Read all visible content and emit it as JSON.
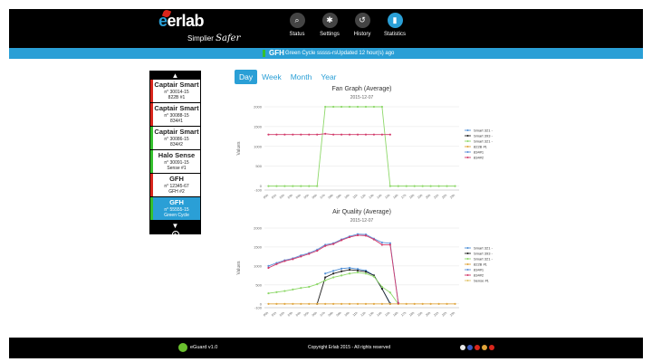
{
  "header": {
    "brand": {
      "logo_text": "erlab",
      "tagline_a": "Simplier",
      "tagline_b": "Safer"
    },
    "nav": [
      {
        "label": "Status",
        "icon": "search-icon",
        "glyph": "⌕"
      },
      {
        "label": "Settings",
        "icon": "gear-icon",
        "glyph": "✱"
      },
      {
        "label": "History",
        "icon": "history-icon",
        "glyph": "↺"
      },
      {
        "label": "Statistics",
        "icon": "chart-icon",
        "glyph": "▮"
      }
    ],
    "active_nav": "Statistics"
  },
  "subbar": {
    "device": "GFH",
    "cycle": "Green Cycle sssss-rs",
    "updated": "Updated 12 hour(s) ago",
    "accent": "#35c02d"
  },
  "devices": [
    {
      "name": "Captair Smart",
      "serial": "n° 30014-15",
      "group": "822B #1",
      "bar": "#d9261c"
    },
    {
      "name": "Captair Smart",
      "serial": "n° 30088-15",
      "group": "834#1",
      "bar": "#d9261c"
    },
    {
      "name": "Captair Smart",
      "serial": "n° 30086-15",
      "group": "834#2",
      "bar": "#35c02d"
    },
    {
      "name": "Halo Sense",
      "serial": "n° 30091-15",
      "group": "Sense #1",
      "bar": "#35c02d"
    },
    {
      "name": "GFH",
      "serial": "n° 12345-67",
      "group": "GFH #2",
      "bar": "#d9261c"
    },
    {
      "name": "GFH",
      "serial": "n° 55555-15",
      "group": "Green Cycle",
      "bar": "#35c02d",
      "selected": true
    }
  ],
  "tabs": [
    "Day",
    "Week",
    "Month",
    "Year"
  ],
  "active_tab": "Day",
  "chart_data": [
    {
      "type": "line",
      "title": "Fan Graph (Average)",
      "subtitle": "2015-12-07",
      "ylabel": "Values",
      "ylim": [
        -100,
        2000
      ],
      "yticks": [
        -100,
        0,
        500,
        1000,
        1500,
        2000
      ],
      "x": [
        "00h",
        "01h",
        "02h",
        "03h",
        "04h",
        "05h",
        "06h",
        "07h",
        "08h",
        "09h",
        "10h",
        "11h",
        "12h",
        "13h",
        "14h",
        "15h",
        "16h",
        "17h",
        "18h",
        "19h",
        "20h",
        "21h",
        "22h",
        "23h"
      ],
      "legend_position": "right",
      "series": [
        {
          "name": "Smart 321 - 2",
          "color": "#4f8fd6",
          "marker": "circle",
          "values": [
            null,
            null,
            null,
            null,
            null,
            null,
            null,
            null,
            null,
            null,
            null,
            null,
            null,
            null,
            null,
            null,
            null,
            null,
            null,
            null,
            null,
            null,
            null,
            null
          ]
        },
        {
          "name": "Smart 393 - 5",
          "color": "#222222",
          "marker": "square",
          "values": [
            null,
            null,
            null,
            null,
            null,
            null,
            null,
            null,
            null,
            null,
            null,
            null,
            null,
            null,
            null,
            null,
            null,
            null,
            null,
            null,
            null,
            null,
            null,
            null
          ]
        },
        {
          "name": "Smart 321 - 1",
          "color": "#8ed86a",
          "marker": "diamond",
          "values": [
            0,
            0,
            0,
            0,
            0,
            0,
            0,
            2000,
            2000,
            2000,
            2000,
            2000,
            2000,
            2000,
            2000,
            0,
            0,
            0,
            0,
            0,
            0,
            0,
            0,
            0
          ]
        },
        {
          "name": "822B #1",
          "color": "#e0a43a",
          "marker": "triangle",
          "values": [
            null,
            null,
            null,
            null,
            null,
            null,
            null,
            null,
            null,
            null,
            null,
            null,
            null,
            null,
            null,
            null,
            null,
            null,
            null,
            null,
            null,
            null,
            null,
            null
          ]
        },
        {
          "name": "834#1",
          "color": "#5b8fd8",
          "marker": "circle",
          "values": [
            null,
            null,
            null,
            null,
            null,
            null,
            null,
            null,
            null,
            null,
            null,
            null,
            null,
            null,
            null,
            null,
            null,
            null,
            null,
            null,
            null,
            null,
            null,
            null
          ]
        },
        {
          "name": "834#2",
          "color": "#d23a6a",
          "marker": "circle",
          "values": [
            1300,
            1300,
            1300,
            1300,
            1300,
            1300,
            1300,
            1320,
            1300,
            1300,
            1300,
            1300,
            1300,
            1300,
            1300,
            1300,
            null,
            null,
            null,
            null,
            null,
            null,
            null,
            null
          ]
        }
      ]
    },
    {
      "type": "line",
      "title": "Air Quality (Average)",
      "subtitle": "2015-12-07",
      "ylabel": "Values",
      "ylim": [
        -100,
        2000
      ],
      "yticks": [
        -100,
        0,
        500,
        1000,
        1500,
        2000
      ],
      "x": [
        "00h",
        "01h",
        "02h",
        "03h",
        "04h",
        "05h",
        "06h",
        "07h",
        "08h",
        "09h",
        "10h",
        "11h",
        "12h",
        "13h",
        "14h",
        "15h",
        "16h",
        "17h",
        "18h",
        "19h",
        "20h",
        "21h",
        "22h",
        "23h"
      ],
      "legend_position": "right",
      "series": [
        {
          "name": "Smart 321 - 2",
          "color": "#4f8fd6",
          "marker": "circle",
          "values": [
            null,
            null,
            null,
            null,
            null,
            null,
            null,
            800,
            870,
            930,
            950,
            920,
            880,
            750,
            400,
            20,
            null,
            null,
            null,
            null,
            null,
            null,
            null,
            null
          ]
        },
        {
          "name": "Smart 393 - 5",
          "color": "#222222",
          "marker": "square",
          "values": [
            null,
            null,
            null,
            null,
            null,
            null,
            0,
            700,
            800,
            860,
            900,
            880,
            850,
            750,
            400,
            0,
            null,
            null,
            null,
            null,
            null,
            null,
            null,
            null
          ]
        },
        {
          "name": "Smart 321 - 1",
          "color": "#8ed86a",
          "marker": "diamond",
          "values": [
            280,
            310,
            340,
            380,
            420,
            450,
            520,
            620,
            700,
            750,
            800,
            830,
            800,
            720,
            450,
            300,
            0,
            null,
            null,
            null,
            null,
            null,
            null,
            null
          ]
        },
        {
          "name": "822B #1",
          "color": "#e0a43a",
          "marker": "triangle",
          "values": [
            0,
            0,
            0,
            0,
            0,
            0,
            0,
            0,
            0,
            0,
            0,
            0,
            0,
            0,
            0,
            0,
            0,
            0,
            0,
            0,
            0,
            0,
            0,
            0
          ]
        },
        {
          "name": "834#1",
          "color": "#5b8fd8",
          "marker": "circle",
          "values": [
            1000,
            1080,
            1150,
            1200,
            1280,
            1340,
            1430,
            1560,
            1600,
            1700,
            1780,
            1840,
            1830,
            1720,
            1620,
            1600,
            30,
            null,
            null,
            null,
            null,
            null,
            null,
            null
          ]
        },
        {
          "name": "834#2",
          "color": "#d23a6a",
          "marker": "circle",
          "values": [
            950,
            1050,
            1130,
            1180,
            1250,
            1320,
            1400,
            1530,
            1580,
            1680,
            1760,
            1810,
            1800,
            1700,
            1560,
            1560,
            20,
            null,
            null,
            null,
            null,
            null,
            null,
            null
          ]
        },
        {
          "name": "Sense #1",
          "color": "#e0c46a",
          "marker": "circle",
          "values": [
            null,
            null,
            null,
            null,
            null,
            null,
            null,
            null,
            null,
            null,
            null,
            null,
            null,
            null,
            null,
            null,
            null,
            null,
            null,
            null,
            null,
            null,
            null,
            null
          ]
        }
      ]
    }
  ],
  "footer": {
    "version": "eGuard v1.0",
    "copyright": "Copyright Erlab 2015 - All rights reserved",
    "flags": [
      "#e8e8e8",
      "#3b5bbf",
      "#d9261c",
      "#e0a43a",
      "#d9261c"
    ]
  }
}
